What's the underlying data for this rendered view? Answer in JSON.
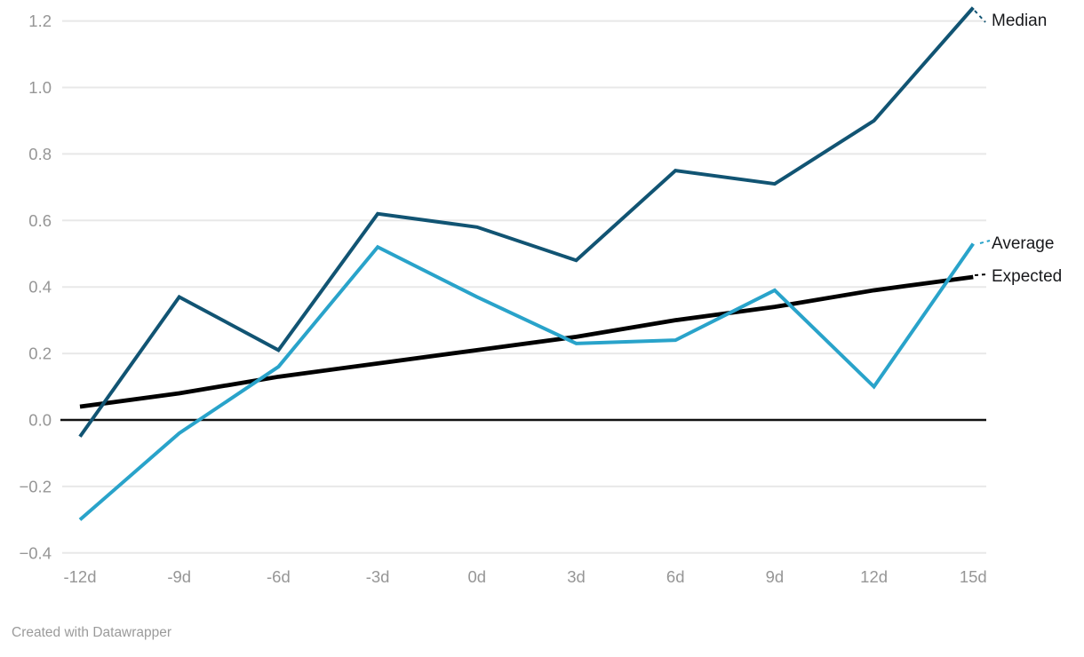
{
  "chart_data": {
    "type": "line",
    "title": "",
    "xlabel": "",
    "ylabel": "",
    "categories": [
      "-12d",
      "-9d",
      "-6d",
      "-3d",
      "0d",
      "3d",
      "6d",
      "9d",
      "12d",
      "15d"
    ],
    "series": [
      {
        "name": "Median",
        "color": "#115473",
        "stroke_width": 4,
        "values": [
          -0.05,
          0.37,
          0.21,
          0.62,
          0.58,
          0.48,
          0.75,
          0.71,
          0.9,
          1.24
        ]
      },
      {
        "name": "Average",
        "color": "#29a3ca",
        "stroke_width": 4,
        "values": [
          -0.3,
          -0.04,
          0.16,
          0.52,
          0.37,
          0.23,
          0.24,
          0.39,
          0.1,
          0.53
        ]
      },
      {
        "name": "Expected",
        "color": "#000000",
        "stroke_width": 4.8,
        "values": [
          0.04,
          0.08,
          0.13,
          0.17,
          0.21,
          0.25,
          0.3,
          0.34,
          0.39,
          0.43
        ]
      }
    ],
    "y_axis": {
      "ticks": [
        1.2,
        1.0,
        0.8,
        0.6,
        0.4,
        0.2,
        0.0,
        -0.2,
        -0.4
      ],
      "tick_labels": [
        "1.2",
        "1.0",
        "0.8",
        "0.6",
        "0.4",
        "0.2",
        "0.0",
        "−0.2",
        "−0.4"
      ],
      "range": [
        -0.4,
        1.25
      ]
    },
    "grid": "horizontal",
    "zero_line": true,
    "legend_position": "line-end-labels-right"
  },
  "colors": {
    "background": "#ffffff",
    "gridline": "#e8e8e8",
    "zero_line": "#111111",
    "tick_text": "#969696",
    "legend_text": "#18191c",
    "credit_text": "#9b9b9b"
  },
  "footer": {
    "credit": "Created with Datawrapper"
  }
}
